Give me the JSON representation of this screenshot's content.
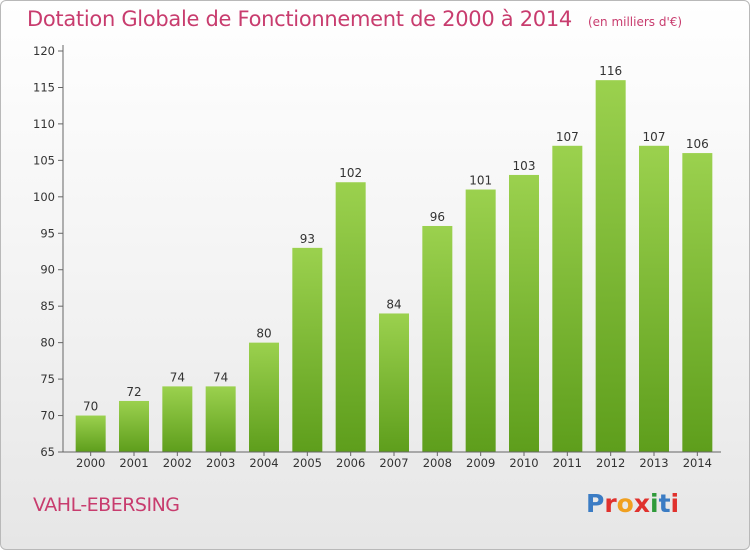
{
  "title": "Dotation Globale de Fonctionnement de 2000 à 2014",
  "unit": "(en milliers d'€)",
  "commune": "VAHL-EBERSING",
  "logo": {
    "text": "Proxiti",
    "colors": [
      "#3b7cc4",
      "#e0312d",
      "#f0a020",
      "#e0312d",
      "#2f9a3a",
      "#3b7cc4",
      "#e0312d"
    ]
  },
  "colors": {
    "bar_top": "#9bd14e",
    "bar_bottom": "#5e9e1c",
    "accent": "#c83c6e"
  },
  "chart_data": {
    "type": "bar",
    "title": "Dotation Globale de Fonctionnement de 2000 à 2014",
    "xlabel": "",
    "ylabel": "",
    "categories": [
      "2000",
      "2001",
      "2002",
      "2003",
      "2004",
      "2005",
      "2006",
      "2007",
      "2008",
      "2009",
      "2010",
      "2011",
      "2012",
      "2013",
      "2014"
    ],
    "values": [
      70,
      72,
      74,
      74,
      80,
      93,
      102,
      84,
      96,
      101,
      103,
      107,
      116,
      107,
      106
    ],
    "ylim": [
      65,
      120
    ],
    "yticks": [
      65,
      70,
      75,
      80,
      85,
      90,
      95,
      100,
      105,
      110,
      115,
      120
    ],
    "grid": false,
    "data_labels": true
  }
}
